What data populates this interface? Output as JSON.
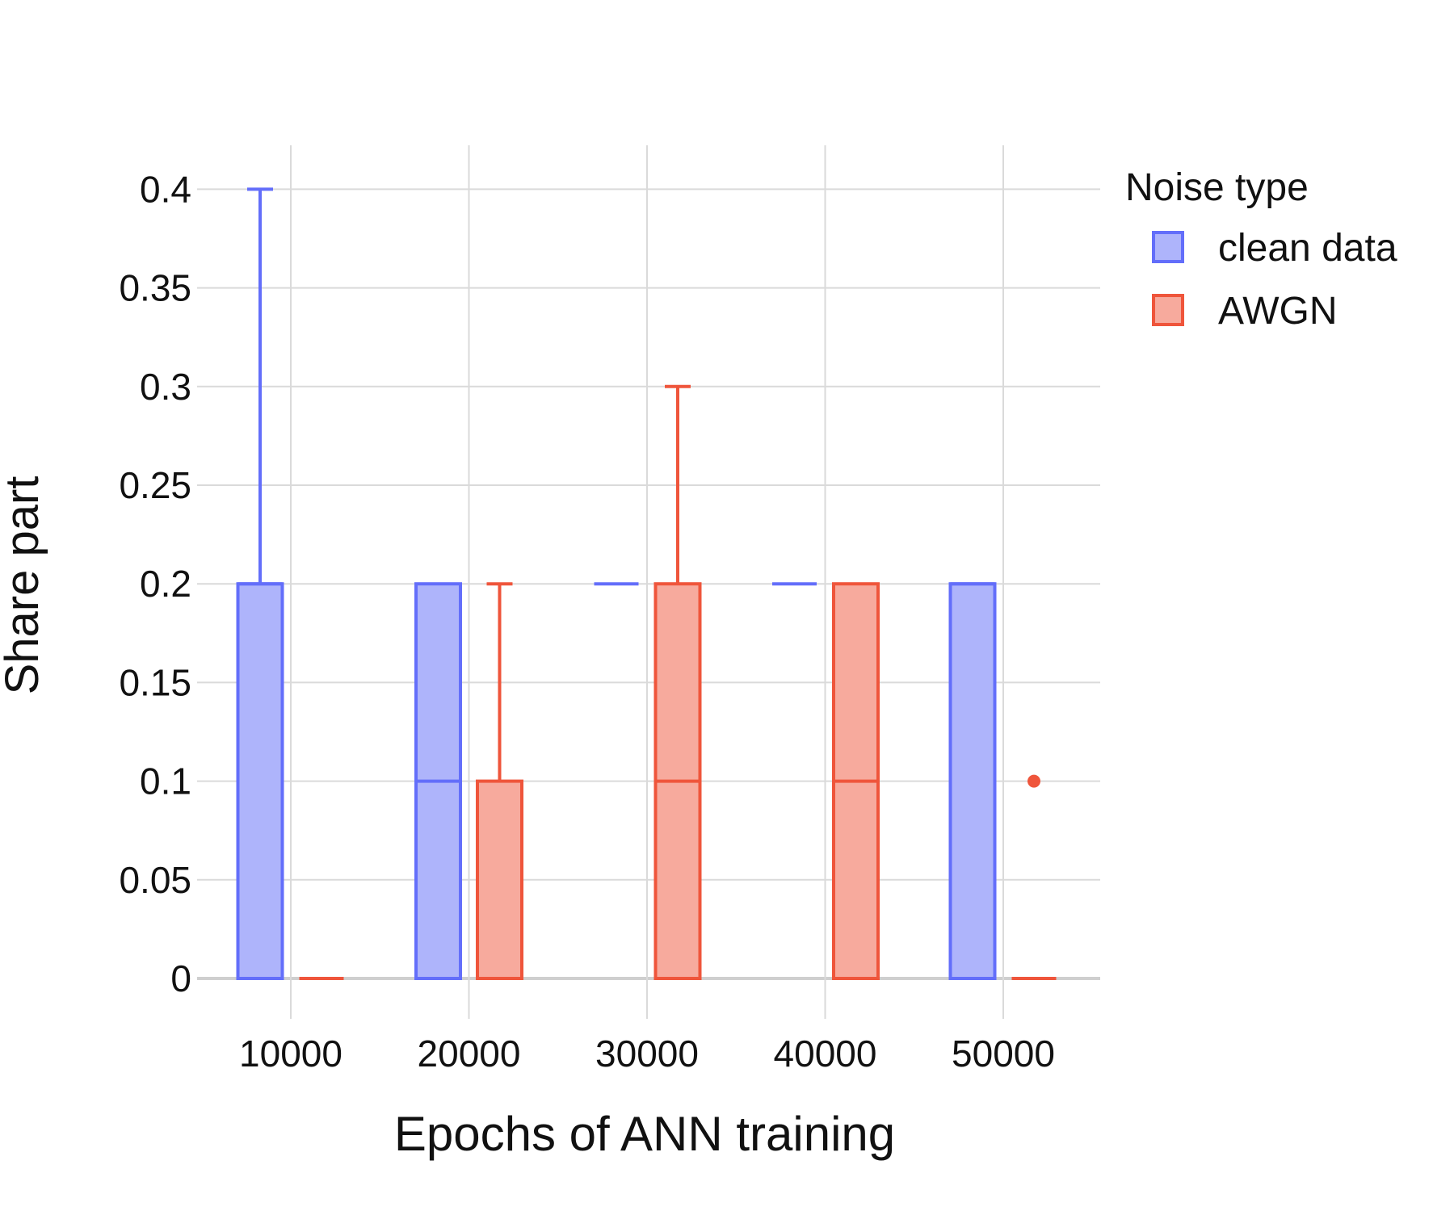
{
  "chart_data": {
    "type": "box",
    "title": "",
    "xlabel": "Epochs of ANN training",
    "ylabel": "Share part",
    "categories": [
      "10000",
      "20000",
      "30000",
      "40000",
      "50000"
    ],
    "ylim": [
      0,
      0.42
    ],
    "yticks": [
      "0",
      "0.05",
      "0.1",
      "0.15",
      "0.2",
      "0.25",
      "0.3",
      "0.35",
      "0.4"
    ],
    "grid": true,
    "legend": {
      "title": "Noise type",
      "placement": "top-right"
    },
    "series": [
      {
        "name": "clean data",
        "color": "#636efa",
        "fill": "#aeb4fb",
        "boxes": [
          {
            "category": "10000",
            "min": 0,
            "q1": 0,
            "median": 0.2,
            "q3": 0.2,
            "max": 0.4,
            "outliers": []
          },
          {
            "category": "20000",
            "min": 0,
            "q1": 0,
            "median": 0.1,
            "q3": 0.2,
            "max": 0.2,
            "outliers": []
          },
          {
            "category": "30000",
            "min": 0.2,
            "q1": 0.2,
            "median": 0.2,
            "q3": 0.2,
            "max": 0.2,
            "outliers": []
          },
          {
            "category": "40000",
            "min": 0.2,
            "q1": 0.2,
            "median": 0.2,
            "q3": 0.2,
            "max": 0.2,
            "outliers": []
          },
          {
            "category": "50000",
            "min": 0,
            "q1": 0,
            "median": 0.2,
            "q3": 0.2,
            "max": 0.2,
            "outliers": []
          }
        ]
      },
      {
        "name": "AWGN",
        "color": "#ef553b",
        "fill": "#f7aa9d",
        "boxes": [
          {
            "category": "10000",
            "min": 0,
            "q1": 0,
            "median": 0,
            "q3": 0,
            "max": 0,
            "outliers": []
          },
          {
            "category": "20000",
            "min": 0,
            "q1": 0,
            "median": 0,
            "q3": 0.1,
            "max": 0.2,
            "outliers": []
          },
          {
            "category": "30000",
            "min": 0,
            "q1": 0,
            "median": 0.1,
            "q3": 0.2,
            "max": 0.3,
            "outliers": []
          },
          {
            "category": "40000",
            "min": 0,
            "q1": 0,
            "median": 0.1,
            "q3": 0.2,
            "max": 0.2,
            "outliers": []
          },
          {
            "category": "50000",
            "min": 0,
            "q1": 0,
            "median": 0,
            "q3": 0,
            "max": 0,
            "outliers": [
              0.1
            ]
          }
        ]
      }
    ]
  }
}
